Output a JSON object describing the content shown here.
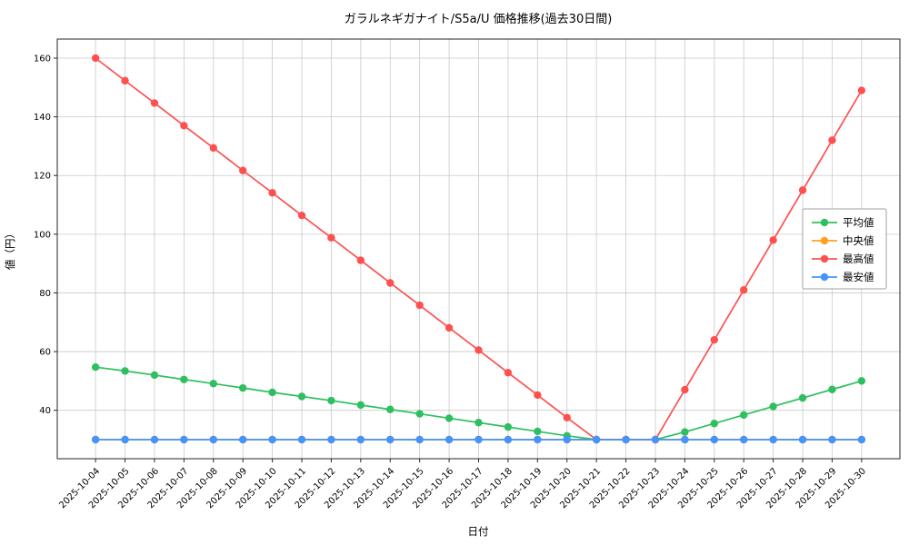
{
  "chart_data": {
    "type": "line",
    "title": "ガラルネギガナイト/S5a/U 価格推移(過去30日間)",
    "xlabel": "日付",
    "ylabel": "値（円）",
    "x": [
      "2025-10-04",
      "2025-10-05",
      "2025-10-06",
      "2025-10-07",
      "2025-10-08",
      "2025-10-09",
      "2025-10-10",
      "2025-10-11",
      "2025-10-12",
      "2025-10-13",
      "2025-10-14",
      "2025-10-15",
      "2025-10-16",
      "2025-10-17",
      "2025-10-18",
      "2025-10-19",
      "2025-10-20",
      "2025-10-21",
      "2025-10-22",
      "2025-10-23",
      "2025-10-24",
      "2025-10-25",
      "2025-10-26",
      "2025-10-27",
      "2025-10-28",
      "2025-10-29",
      "2025-10-30"
    ],
    "series": [
      {
        "key": "avg",
        "name": "平均値",
        "color": "#2fbf61",
        "values": [
          54.7,
          53.4,
          52.0,
          50.5,
          49.1,
          47.6,
          46.1,
          44.7,
          43.3,
          41.8,
          40.3,
          38.8,
          37.3,
          35.8,
          34.3,
          32.8,
          31.3,
          30,
          30,
          30,
          32.6,
          35.5,
          38.4,
          41.3,
          44.2,
          47.1,
          50.0
        ]
      },
      {
        "key": "median",
        "name": "中央値",
        "color": "#ffa01e",
        "values": [
          30,
          30,
          30,
          30,
          30,
          30,
          30,
          30,
          30,
          30,
          30,
          30,
          30,
          30,
          30,
          30,
          30,
          30,
          30,
          30,
          30,
          30,
          30,
          30,
          30,
          30,
          30
        ]
      },
      {
        "key": "max",
        "name": "最高値",
        "color": "#ff5050",
        "values": [
          160,
          152.3,
          144.7,
          137.0,
          129.4,
          121.7,
          114.1,
          106.4,
          98.8,
          91.1,
          83.4,
          75.8,
          68.1,
          60.5,
          52.8,
          45.2,
          37.5,
          30,
          30,
          30,
          47,
          64,
          81,
          98,
          115,
          132,
          149
        ]
      },
      {
        "key": "min",
        "name": "最安値",
        "color": "#4694fa",
        "values": [
          30,
          30,
          30,
          30,
          30,
          30,
          30,
          30,
          30,
          30,
          30,
          30,
          30,
          30,
          30,
          30,
          30,
          30,
          30,
          30,
          30,
          30,
          30,
          30,
          30,
          30,
          30
        ]
      }
    ],
    "ylim": [
      23.5,
      166.5
    ],
    "yticks": [
      40,
      60,
      80,
      100,
      120,
      140,
      160
    ],
    "grid": true,
    "legend": {
      "position": "center-right",
      "entries": [
        "平均値",
        "中央値",
        "最高値",
        "最安値"
      ]
    }
  }
}
